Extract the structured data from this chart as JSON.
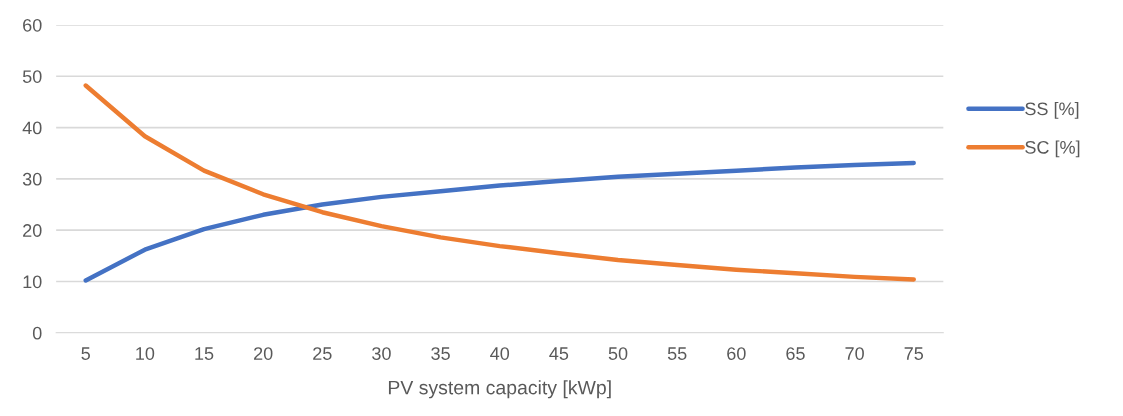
{
  "chart_data": {
    "type": "line",
    "xlabel": "PV system capacity [kWp]",
    "categories": [
      "5",
      "10",
      "15",
      "20",
      "25",
      "30",
      "35",
      "40",
      "45",
      "50",
      "55",
      "60",
      "65",
      "70",
      "75"
    ],
    "series": [
      {
        "name": "SS [%]",
        "color": "#4472c4",
        "values": [
          10.2,
          16.2,
          20.2,
          23,
          25,
          26.5,
          27.6,
          28.7,
          29.6,
          30.4,
          31,
          31.6,
          32.2,
          32.7,
          33.1
        ]
      },
      {
        "name": "SC [%]",
        "color": "#ed7d31",
        "values": [
          48.2,
          38.3,
          31.6,
          27,
          23.5,
          20.8,
          18.6,
          16.9,
          15.5,
          14.2,
          13.2,
          12.3,
          11.6,
          10.9,
          10.4
        ]
      }
    ],
    "ylim": [
      0,
      60
    ],
    "yticks": [
      0,
      10,
      20,
      30,
      40,
      50,
      60
    ],
    "grid": "y",
    "legend": "right",
    "marker": "none",
    "line_style": "solid"
  }
}
